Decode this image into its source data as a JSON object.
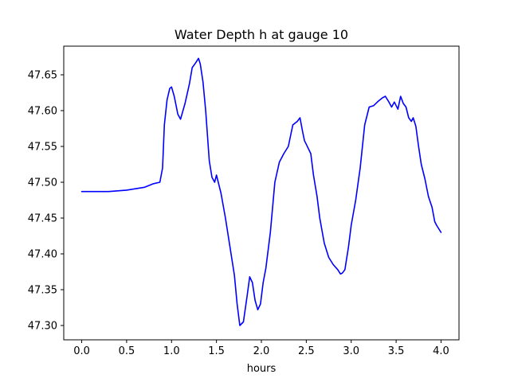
{
  "chart_data": {
    "type": "line",
    "title": "Water Depth h at gauge 10",
    "xlabel": "hours",
    "ylabel": "",
    "xlim": [
      -0.2,
      4.2
    ],
    "ylim": [
      47.28,
      47.69
    ],
    "grid": false,
    "x_ticks": [
      0.0,
      0.5,
      1.0,
      1.5,
      2.0,
      2.5,
      3.0,
      3.5,
      4.0
    ],
    "x_tick_labels": [
      "0.0",
      "0.5",
      "1.0",
      "1.5",
      "2.0",
      "2.5",
      "3.0",
      "3.5",
      "4.0"
    ],
    "y_ticks": [
      47.3,
      47.35,
      47.4,
      47.45,
      47.5,
      47.55,
      47.6,
      47.65
    ],
    "y_tick_labels": [
      "47.30",
      "47.35",
      "47.40",
      "47.45",
      "47.50",
      "47.55",
      "47.60",
      "47.65"
    ],
    "series": [
      {
        "color": "#0000ff",
        "x": [
          0.0,
          0.3,
          0.5,
          0.7,
          0.8,
          0.87,
          0.9,
          0.92,
          0.95,
          0.98,
          1.0,
          1.03,
          1.07,
          1.1,
          1.15,
          1.2,
          1.23,
          1.27,
          1.3,
          1.32,
          1.35,
          1.38,
          1.42,
          1.45,
          1.48,
          1.5,
          1.55,
          1.6,
          1.65,
          1.7,
          1.73,
          1.76,
          1.8,
          1.84,
          1.87,
          1.9,
          1.93,
          1.96,
          1.99,
          2.02,
          2.05,
          2.1,
          2.15,
          2.2,
          2.25,
          2.3,
          2.35,
          2.4,
          2.43,
          2.46,
          2.48,
          2.5,
          2.55,
          2.58,
          2.62,
          2.65,
          2.7,
          2.75,
          2.8,
          2.85,
          2.88,
          2.9,
          2.93,
          2.97,
          3.0,
          3.05,
          3.1,
          3.15,
          3.2,
          3.25,
          3.3,
          3.35,
          3.38,
          3.42,
          3.45,
          3.48,
          3.52,
          3.55,
          3.58,
          3.61,
          3.64,
          3.67,
          3.69,
          3.72,
          3.75,
          3.78,
          3.82,
          3.86,
          3.9,
          3.93,
          3.95,
          4.0
        ],
        "y": [
          47.487,
          47.487,
          47.489,
          47.493,
          47.498,
          47.5,
          47.52,
          47.58,
          47.615,
          47.631,
          47.633,
          47.62,
          47.595,
          47.588,
          47.61,
          47.638,
          47.66,
          47.667,
          47.673,
          47.665,
          47.64,
          47.6,
          47.53,
          47.507,
          47.5,
          47.51,
          47.485,
          47.45,
          47.41,
          47.37,
          47.33,
          47.3,
          47.305,
          47.34,
          47.368,
          47.36,
          47.335,
          47.322,
          47.33,
          47.36,
          47.38,
          47.43,
          47.5,
          47.528,
          47.54,
          47.55,
          47.58,
          47.585,
          47.59,
          47.57,
          47.558,
          47.553,
          47.54,
          47.51,
          47.48,
          47.45,
          47.415,
          47.395,
          47.385,
          47.378,
          47.372,
          47.373,
          47.378,
          47.41,
          47.44,
          47.475,
          47.52,
          47.58,
          47.605,
          47.607,
          47.613,
          47.618,
          47.62,
          47.612,
          47.605,
          47.612,
          47.602,
          47.62,
          47.61,
          47.605,
          47.59,
          47.585,
          47.59,
          47.578,
          47.55,
          47.525,
          47.505,
          47.48,
          47.465,
          47.445,
          47.44,
          47.43
        ]
      }
    ]
  }
}
